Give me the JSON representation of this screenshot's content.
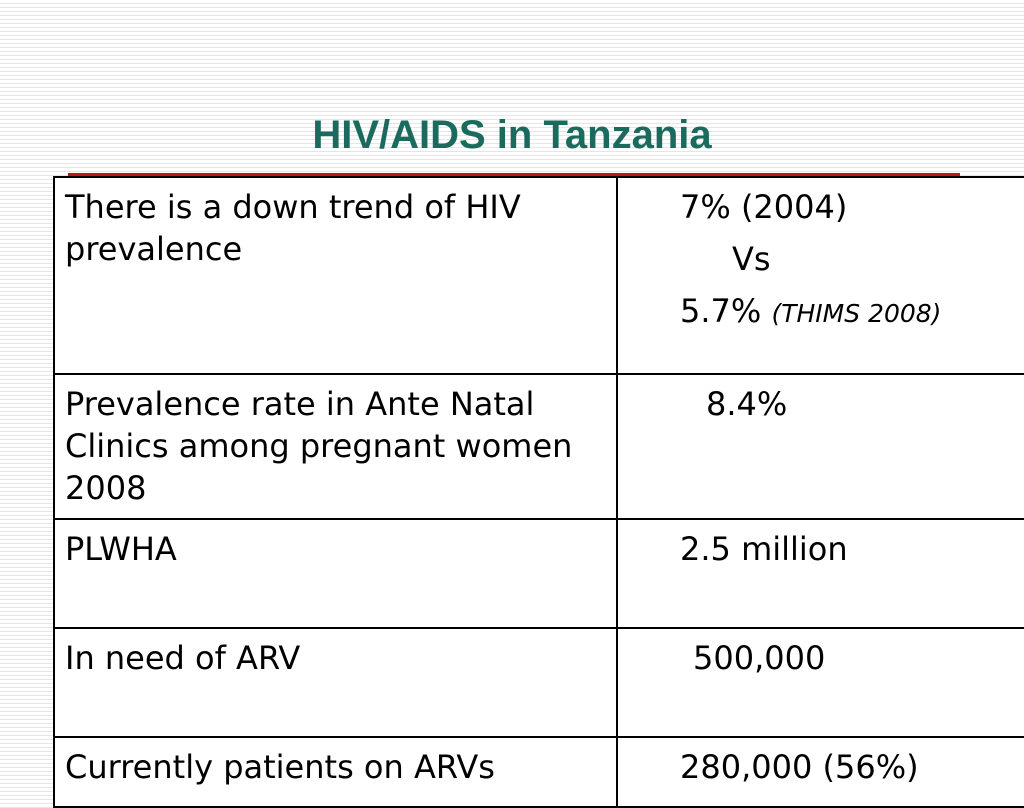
{
  "slide": {
    "title": "HIV/AIDS in Tanzania"
  },
  "table": {
    "rows": [
      {
        "label": "There is a down trend of HIV prevalence",
        "value_line1": "7% (2004)",
        "value_line2": "Vs",
        "value_line3": "5.7%",
        "value_note": "(THIMS 2008)"
      },
      {
        "label": "Prevalence rate in Ante Natal Clinics among pregnant women 2008",
        "value": "8.4%"
      },
      {
        "label": "PLWHA",
        "value": "2.5 million"
      },
      {
        "label": "In need of ARV",
        "value": "500,000"
      },
      {
        "label": "Currently patients  on ARVs",
        "value": "280,000 (56%)"
      }
    ]
  },
  "colors": {
    "title": "#1a6b5e",
    "underline": "#c0141c",
    "background_stripe": "#e6e6e6"
  }
}
